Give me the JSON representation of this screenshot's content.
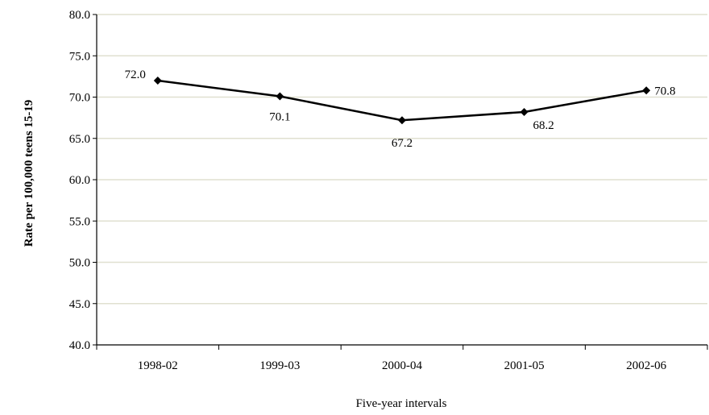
{
  "chart_data": {
    "type": "line",
    "title": "",
    "xlabel": "Five-year intervals",
    "ylabel": "Rate per 100,000 teens 15-19",
    "categories": [
      "1998-02",
      "1999-03",
      "2000-04",
      "2001-05",
      "2002-06"
    ],
    "series": [
      {
        "values": [
          72.0,
          70.1,
          67.2,
          68.2,
          70.8
        ],
        "labels": [
          "72.0",
          "70.1",
          "67.2",
          "68.2",
          "70.8"
        ],
        "marker": "diamond",
        "color": "#000000"
      }
    ],
    "ylim": [
      40.0,
      80.0
    ],
    "yticks": [
      40.0,
      45.0,
      50.0,
      55.0,
      60.0,
      65.0,
      70.0,
      75.0,
      80.0
    ],
    "ytick_labels": [
      "40.0",
      "45.0",
      "50.0",
      "55.0",
      "60.0",
      "65.0",
      "70.0",
      "75.0",
      "80.0"
    ],
    "grid": true,
    "grid_color": "#e0e0d0",
    "legend": "none"
  }
}
